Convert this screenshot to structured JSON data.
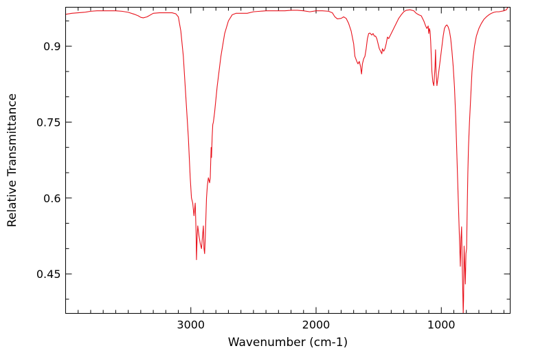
{
  "chart_data": {
    "type": "line",
    "title": "",
    "xlabel": "Wavenumber (cm-1)",
    "ylabel": "Relative Transmittance",
    "x_reversed": true,
    "xlim": [
      4000,
      450
    ],
    "ylim": [
      0.372,
      0.977
    ],
    "x_ticks": [
      {
        "value": 3000,
        "label": "3000"
      },
      {
        "value": 2000,
        "label": "2000"
      },
      {
        "value": 1000,
        "label": "1000"
      }
    ],
    "y_ticks": [
      {
        "value": 0.9,
        "label": "0.9"
      },
      {
        "value": 0.75,
        "label": "0.75"
      },
      {
        "value": 0.6,
        "label": "0.6"
      },
      {
        "value": 0.45,
        "label": "0.45"
      }
    ],
    "grid": false,
    "legend": "none",
    "series": [
      {
        "color": "#e8101a",
        "points": [
          [
            4000,
            0.963
          ],
          [
            3950,
            0.965
          ],
          [
            3900,
            0.966
          ],
          [
            3850,
            0.967
          ],
          [
            3800,
            0.969
          ],
          [
            3750,
            0.97
          ],
          [
            3700,
            0.97
          ],
          [
            3650,
            0.97
          ],
          [
            3600,
            0.97
          ],
          [
            3550,
            0.969
          ],
          [
            3500,
            0.967
          ],
          [
            3450,
            0.963
          ],
          [
            3420,
            0.96
          ],
          [
            3400,
            0.957
          ],
          [
            3380,
            0.956
          ],
          [
            3350,
            0.958
          ],
          [
            3300,
            0.965
          ],
          [
            3250,
            0.966
          ],
          [
            3200,
            0.966
          ],
          [
            3150,
            0.966
          ],
          [
            3120,
            0.964
          ],
          [
            3100,
            0.958
          ],
          [
            3080,
            0.93
          ],
          [
            3060,
            0.88
          ],
          [
            3040,
            0.8
          ],
          [
            3020,
            0.72
          ],
          [
            3005,
            0.64
          ],
          [
            2995,
            0.6
          ],
          [
            2985,
            0.59
          ],
          [
            2975,
            0.565
          ],
          [
            2965,
            0.59
          ],
          [
            2958,
            0.53
          ],
          [
            2955,
            0.478
          ],
          [
            2950,
            0.52
          ],
          [
            2945,
            0.545
          ],
          [
            2935,
            0.525
          ],
          [
            2925,
            0.51
          ],
          [
            2915,
            0.5
          ],
          [
            2905,
            0.53
          ],
          [
            2900,
            0.545
          ],
          [
            2895,
            0.5
          ],
          [
            2890,
            0.49
          ],
          [
            2885,
            0.52
          ],
          [
            2875,
            0.6
          ],
          [
            2868,
            0.625
          ],
          [
            2860,
            0.64
          ],
          [
            2850,
            0.63
          ],
          [
            2845,
            0.64
          ],
          [
            2838,
            0.7
          ],
          [
            2835,
            0.68
          ],
          [
            2830,
            0.72
          ],
          [
            2825,
            0.745
          ],
          [
            2820,
            0.75
          ],
          [
            2810,
            0.77
          ],
          [
            2790,
            0.82
          ],
          [
            2760,
            0.88
          ],
          [
            2730,
            0.925
          ],
          [
            2700,
            0.95
          ],
          [
            2670,
            0.962
          ],
          [
            2640,
            0.965
          ],
          [
            2600,
            0.965
          ],
          [
            2550,
            0.965
          ],
          [
            2500,
            0.968
          ],
          [
            2450,
            0.969
          ],
          [
            2400,
            0.97
          ],
          [
            2350,
            0.97
          ],
          [
            2300,
            0.97
          ],
          [
            2250,
            0.97
          ],
          [
            2200,
            0.971
          ],
          [
            2150,
            0.971
          ],
          [
            2100,
            0.97
          ],
          [
            2050,
            0.968
          ],
          [
            2000,
            0.97
          ],
          [
            1950,
            0.97
          ],
          [
            1900,
            0.969
          ],
          [
            1870,
            0.966
          ],
          [
            1850,
            0.958
          ],
          [
            1830,
            0.954
          ],
          [
            1800,
            0.955
          ],
          [
            1780,
            0.958
          ],
          [
            1760,
            0.955
          ],
          [
            1740,
            0.945
          ],
          [
            1720,
            0.93
          ],
          [
            1700,
            0.905
          ],
          [
            1690,
            0.88
          ],
          [
            1675,
            0.87
          ],
          [
            1665,
            0.865
          ],
          [
            1655,
            0.87
          ],
          [
            1645,
            0.86
          ],
          [
            1637,
            0.845
          ],
          [
            1630,
            0.865
          ],
          [
            1620,
            0.875
          ],
          [
            1610,
            0.88
          ],
          [
            1600,
            0.895
          ],
          [
            1590,
            0.915
          ],
          [
            1580,
            0.925
          ],
          [
            1570,
            0.926
          ],
          [
            1555,
            0.922
          ],
          [
            1545,
            0.925
          ],
          [
            1535,
            0.92
          ],
          [
            1525,
            0.92
          ],
          [
            1515,
            0.915
          ],
          [
            1505,
            0.905
          ],
          [
            1495,
            0.895
          ],
          [
            1485,
            0.89
          ],
          [
            1475,
            0.885
          ],
          [
            1470,
            0.895
          ],
          [
            1460,
            0.89
          ],
          [
            1450,
            0.895
          ],
          [
            1440,
            0.905
          ],
          [
            1430,
            0.918
          ],
          [
            1420,
            0.915
          ],
          [
            1410,
            0.92
          ],
          [
            1400,
            0.925
          ],
          [
            1380,
            0.935
          ],
          [
            1360,
            0.945
          ],
          [
            1340,
            0.955
          ],
          [
            1320,
            0.962
          ],
          [
            1300,
            0.968
          ],
          [
            1280,
            0.971
          ],
          [
            1250,
            0.972
          ],
          [
            1220,
            0.97
          ],
          [
            1200,
            0.965
          ],
          [
            1180,
            0.962
          ],
          [
            1160,
            0.96
          ],
          [
            1140,
            0.95
          ],
          [
            1125,
            0.94
          ],
          [
            1115,
            0.935
          ],
          [
            1105,
            0.94
          ],
          [
            1100,
            0.925
          ],
          [
            1095,
            0.935
          ],
          [
            1090,
            0.93
          ],
          [
            1085,
            0.91
          ],
          [
            1080,
            0.88
          ],
          [
            1075,
            0.85
          ],
          [
            1068,
            0.83
          ],
          [
            1060,
            0.822
          ],
          [
            1055,
            0.84
          ],
          [
            1050,
            0.86
          ],
          [
            1046,
            0.893
          ],
          [
            1042,
            0.85
          ],
          [
            1035,
            0.822
          ],
          [
            1025,
            0.84
          ],
          [
            1015,
            0.86
          ],
          [
            1005,
            0.88
          ],
          [
            995,
            0.9
          ],
          [
            985,
            0.92
          ],
          [
            975,
            0.935
          ],
          [
            965,
            0.94
          ],
          [
            955,
            0.942
          ],
          [
            945,
            0.938
          ],
          [
            935,
            0.93
          ],
          [
            925,
            0.915
          ],
          [
            915,
            0.89
          ],
          [
            905,
            0.86
          ],
          [
            895,
            0.82
          ],
          [
            885,
            0.76
          ],
          [
            875,
            0.68
          ],
          [
            865,
            0.6
          ],
          [
            855,
            0.52
          ],
          [
            848,
            0.465
          ],
          [
            843,
            0.52
          ],
          [
            838,
            0.543
          ],
          [
            833,
            0.47
          ],
          [
            828,
            0.41
          ],
          [
            825,
            0.372
          ],
          [
            822,
            0.4
          ],
          [
            818,
            0.505
          ],
          [
            813,
            0.47
          ],
          [
            808,
            0.43
          ],
          [
            803,
            0.49
          ],
          [
            798,
            0.5
          ],
          [
            793,
            0.58
          ],
          [
            788,
            0.65
          ],
          [
            783,
            0.7
          ],
          [
            775,
            0.75
          ],
          [
            765,
            0.8
          ],
          [
            755,
            0.85
          ],
          [
            745,
            0.88
          ],
          [
            735,
            0.9
          ],
          [
            720,
            0.92
          ],
          [
            700,
            0.935
          ],
          [
            680,
            0.945
          ],
          [
            660,
            0.953
          ],
          [
            640,
            0.958
          ],
          [
            620,
            0.962
          ],
          [
            600,
            0.965
          ],
          [
            580,
            0.967
          ],
          [
            560,
            0.968
          ],
          [
            540,
            0.968
          ],
          [
            520,
            0.969
          ],
          [
            500,
            0.97
          ],
          [
            480,
            0.972
          ],
          [
            465,
            0.978
          ],
          [
            455,
            0.98
          ],
          [
            450,
            0.982
          ]
        ]
      }
    ]
  }
}
